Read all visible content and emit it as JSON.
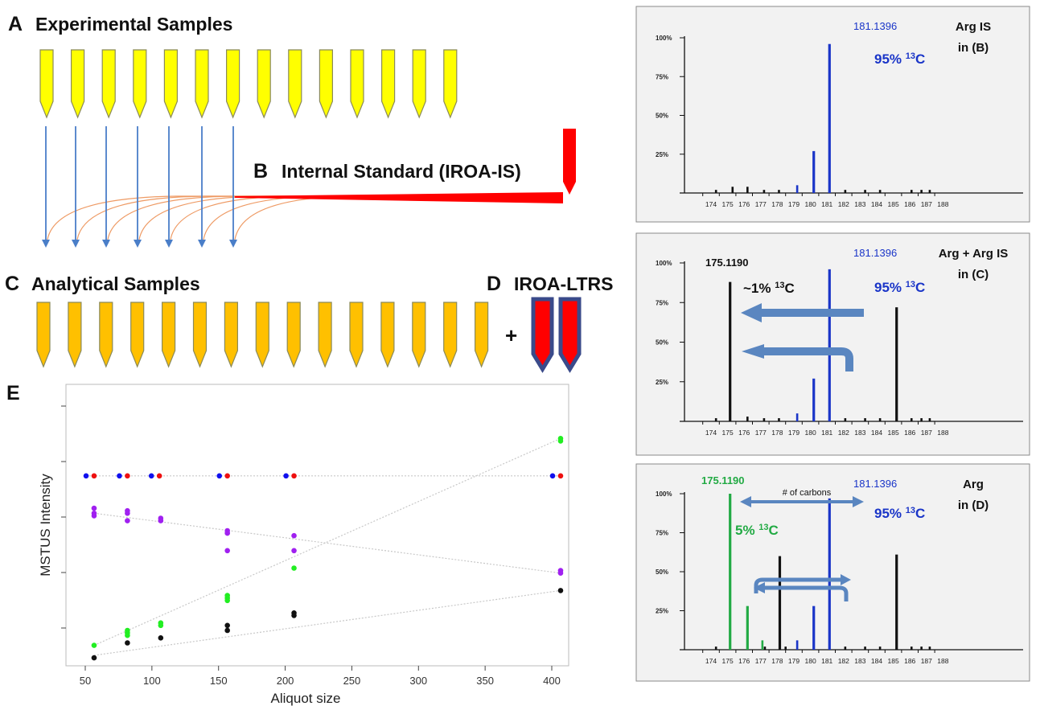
{
  "colors": {
    "yellow_tube": "#ffff00",
    "orange_tube": "#ffc000",
    "tube_outline": "#8a8a5a",
    "is_red": "#ff0000",
    "ltrs_border": "#3a4a8a",
    "arrow_blue": "#4a7ec8",
    "curve_orange": "#ee9a64",
    "peak_blue": "#1a35c8",
    "peak_black": "#111111",
    "peak_green": "#22aa44",
    "panel_bg": "#f2f2f2",
    "wide_arrow": "#5a86c0",
    "dot_blue": "#1010ee",
    "dot_red": "#ee1010",
    "dot_purple": "#a020f0",
    "dot_green": "#22ee22",
    "dot_black": "#111111"
  },
  "panel_a": {
    "letter": "A",
    "title": "Experimental Samples",
    "tube_count": 14
  },
  "panel_b": {
    "letter": "B",
    "title": "Internal Standard (IROA-IS)",
    "arrow_count": 7
  },
  "panel_c": {
    "letter": "C",
    "title": "Analytical Samples",
    "tube_count": 15
  },
  "panel_d": {
    "letter": "D",
    "title": "IROA-LTRS",
    "plus": "+"
  },
  "panel_e": {
    "letter": "E"
  },
  "chart_data": [
    {
      "type": "bar",
      "panel": "spectrum-is",
      "x_ticks": [
        "174",
        "175",
        "176",
        "177",
        "178",
        "179",
        "180",
        "181",
        "182",
        "183",
        "184",
        "185",
        "186",
        "187",
        "188"
      ],
      "y_ticks": [
        "100%",
        "75%",
        "50%",
        "25%"
      ],
      "ylim": [
        0,
        100
      ],
      "title": "Arg IS",
      "subtitle": "in (B)",
      "peak_label": "181.1396",
      "iso_label_main": "95% ",
      "iso_label_sup": "13",
      "iso_label_end": "C",
      "peaks": [
        {
          "mz": 174.3,
          "value": 2,
          "color": "black"
        },
        {
          "mz": 175.3,
          "value": 4,
          "color": "black"
        },
        {
          "mz": 176.2,
          "value": 4,
          "color": "black"
        },
        {
          "mz": 177.2,
          "value": 2,
          "color": "black"
        },
        {
          "mz": 178.1,
          "value": 2,
          "color": "black"
        },
        {
          "mz": 179.2,
          "value": 5,
          "color": "blue"
        },
        {
          "mz": 180.2,
          "value": 27,
          "color": "blue"
        },
        {
          "mz": 181.15,
          "value": 96,
          "color": "blue"
        },
        {
          "mz": 182.1,
          "value": 2,
          "color": "black"
        },
        {
          "mz": 183.3,
          "value": 2,
          "color": "black"
        },
        {
          "mz": 184.2,
          "value": 2,
          "color": "black"
        },
        {
          "mz": 186.1,
          "value": 2,
          "color": "black"
        },
        {
          "mz": 186.7,
          "value": 2,
          "color": "black"
        },
        {
          "mz": 187.2,
          "value": 2,
          "color": "black"
        }
      ]
    },
    {
      "type": "bar",
      "panel": "spectrum-mix",
      "x_ticks": [
        "174",
        "175",
        "176",
        "177",
        "178",
        "179",
        "180",
        "181",
        "182",
        "183",
        "184",
        "185",
        "186",
        "187",
        "188"
      ],
      "y_ticks": [
        "100%",
        "75%",
        "50%",
        "25%"
      ],
      "ylim": [
        0,
        100
      ],
      "title": "Arg + Arg IS",
      "subtitle": "in (C)",
      "peak_label": "181.1396",
      "peak_label_2": "175.1190",
      "iso_label_main": "95% ",
      "iso_label_sup": "13",
      "iso_label_end": "C",
      "iso_label_2_main": "~1% ",
      "iso_label_2_sup": "13",
      "iso_label_2_end": "C",
      "peaks": [
        {
          "mz": 174.3,
          "value": 2,
          "color": "black"
        },
        {
          "mz": 175.15,
          "value": 88,
          "color": "black"
        },
        {
          "mz": 176.2,
          "value": 3,
          "color": "black"
        },
        {
          "mz": 177.2,
          "value": 2,
          "color": "black"
        },
        {
          "mz": 178.1,
          "value": 2,
          "color": "black"
        },
        {
          "mz": 179.2,
          "value": 5,
          "color": "blue"
        },
        {
          "mz": 180.2,
          "value": 27,
          "color": "blue"
        },
        {
          "mz": 181.15,
          "value": 96,
          "color": "blue"
        },
        {
          "mz": 182.1,
          "value": 2,
          "color": "black"
        },
        {
          "mz": 183.3,
          "value": 2,
          "color": "black"
        },
        {
          "mz": 184.2,
          "value": 2,
          "color": "black"
        },
        {
          "mz": 185.2,
          "value": 72,
          "color": "black"
        },
        {
          "mz": 186.1,
          "value": 2,
          "color": "black"
        },
        {
          "mz": 186.7,
          "value": 2,
          "color": "black"
        },
        {
          "mz": 187.2,
          "value": 2,
          "color": "black"
        }
      ]
    },
    {
      "type": "bar",
      "panel": "spectrum-arg",
      "x_ticks": [
        "174",
        "175",
        "176",
        "177",
        "178",
        "179",
        "180",
        "181",
        "182",
        "183",
        "184",
        "185",
        "186",
        "187",
        "188"
      ],
      "y_ticks": [
        "100%",
        "75%",
        "50%",
        "25%"
      ],
      "ylim": [
        0,
        100
      ],
      "title": "Arg",
      "subtitle": "in (D)",
      "peak_label": "181.1396",
      "peak_label_2": "175.1190",
      "bracket_label": "# of carbons",
      "iso_label_main": "95% ",
      "iso_label_sup": "13",
      "iso_label_end": "C",
      "iso_label_2_main": "5% ",
      "iso_label_2_sup": "13",
      "iso_label_2_end": "C",
      "peaks": [
        {
          "mz": 174.3,
          "value": 2,
          "color": "black"
        },
        {
          "mz": 175.15,
          "value": 100,
          "color": "green"
        },
        {
          "mz": 176.2,
          "value": 28,
          "color": "green"
        },
        {
          "mz": 177.1,
          "value": 6,
          "color": "green"
        },
        {
          "mz": 177.25,
          "value": 2,
          "color": "black"
        },
        {
          "mz": 178.15,
          "value": 60,
          "color": "black"
        },
        {
          "mz": 178.5,
          "value": 2,
          "color": "black"
        },
        {
          "mz": 179.2,
          "value": 6,
          "color": "blue"
        },
        {
          "mz": 180.2,
          "value": 28,
          "color": "blue"
        },
        {
          "mz": 181.15,
          "value": 97,
          "color": "blue"
        },
        {
          "mz": 182.1,
          "value": 2,
          "color": "black"
        },
        {
          "mz": 183.3,
          "value": 2,
          "color": "black"
        },
        {
          "mz": 184.2,
          "value": 2,
          "color": "black"
        },
        {
          "mz": 185.2,
          "value": 61,
          "color": "black"
        },
        {
          "mz": 186.1,
          "value": 2,
          "color": "black"
        },
        {
          "mz": 186.7,
          "value": 2,
          "color": "black"
        },
        {
          "mz": 187.2,
          "value": 2,
          "color": "black"
        }
      ]
    },
    {
      "type": "scatter",
      "panel": "panel-e",
      "xlabel": "Aliquot size",
      "ylabel": "MSTUS Intensity",
      "x_ticks": [
        50,
        100,
        150,
        200,
        250,
        300,
        350,
        400
      ],
      "xlim": [
        30,
        415
      ],
      "ylim": [
        0,
        100
      ],
      "series": [
        {
          "color": "blue",
          "points": [
            [
              47,
              72
            ],
            [
              72,
              72
            ],
            [
              96,
              72
            ],
            [
              147,
              72
            ],
            [
              197,
              72
            ],
            [
              397,
              72
            ]
          ]
        },
        {
          "color": "red",
          "points": [
            [
              53,
              72
            ],
            [
              78,
              72
            ],
            [
              102,
              72
            ],
            [
              153,
              72
            ],
            [
              203,
              72
            ],
            [
              403,
              72
            ]
          ]
        },
        {
          "color": "purple",
          "points": [
            [
              53,
              59
            ],
            [
              53,
              57
            ],
            [
              53,
              56
            ],
            [
              78,
              58
            ],
            [
              78,
              57
            ],
            [
              78,
              54
            ],
            [
              103,
              55
            ],
            [
              103,
              54
            ],
            [
              153,
              50
            ],
            [
              153,
              49
            ],
            [
              153,
              42
            ],
            [
              203,
              48
            ],
            [
              203,
              42
            ],
            [
              403,
              34
            ],
            [
              403,
              33
            ]
          ]
        },
        {
          "color": "green",
          "points": [
            [
              53,
              4
            ],
            [
              78,
              10
            ],
            [
              78,
              9
            ],
            [
              78,
              8
            ],
            [
              103,
              13
            ],
            [
              103,
              12
            ],
            [
              153,
              24
            ],
            [
              153,
              23
            ],
            [
              153,
              22
            ],
            [
              203,
              35
            ],
            [
              403,
              87
            ],
            [
              403,
              86
            ]
          ]
        },
        {
          "color": "black",
          "points": [
            [
              53,
              -1
            ],
            [
              78,
              5
            ],
            [
              103,
              7
            ],
            [
              153,
              12
            ],
            [
              153,
              10
            ],
            [
              203,
              17
            ],
            [
              203,
              16
            ],
            [
              403,
              26
            ]
          ]
        }
      ],
      "trend_lines": [
        {
          "color": "gray",
          "points": [
            [
              47,
              72
            ],
            [
              403,
              72
            ]
          ]
        },
        {
          "color": "gray",
          "points": [
            [
              53,
              57
            ],
            [
              403,
              33
            ]
          ]
        },
        {
          "color": "gray",
          "points": [
            [
              53,
              4
            ],
            [
              403,
              87
            ]
          ]
        },
        {
          "color": "gray",
          "points": [
            [
              53,
              0
            ],
            [
              403,
              26
            ]
          ]
        }
      ]
    }
  ]
}
